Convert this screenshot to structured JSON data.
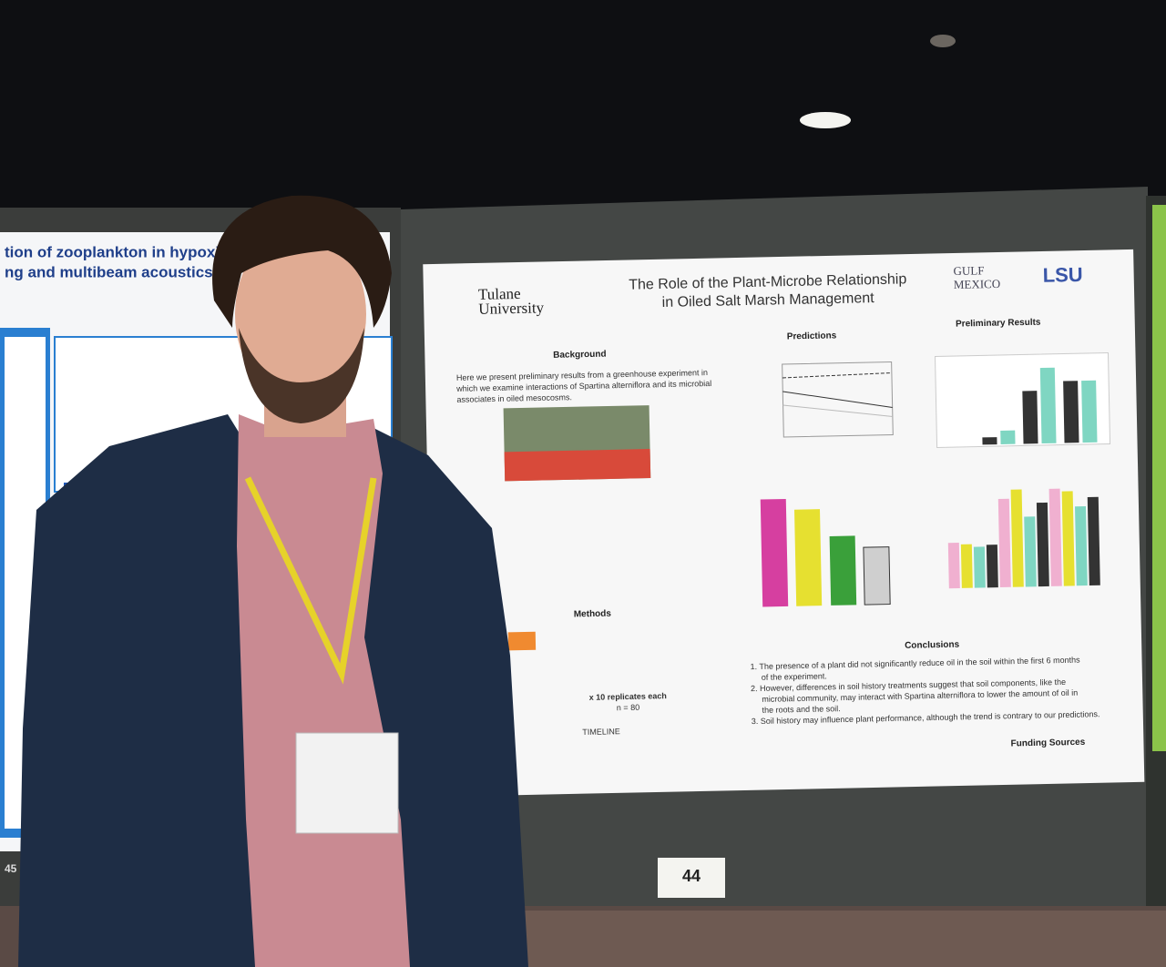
{
  "left_poster": {
    "title_lines": [
      "tion of zooplankton in hypoxic w",
      "ng and multibeam acoustics"
    ],
    "number": "45"
  },
  "poster": {
    "logo_left": [
      "Tulane",
      "University"
    ],
    "logo_gulf": [
      "GULF",
      "MEXICO"
    ],
    "logo_lsu": "LSU",
    "title_lines": [
      "The Role of the Plant-Microbe Relationship",
      "in Oiled Salt Marsh Management"
    ],
    "sections": {
      "background": "Background",
      "predictions": "Predictions",
      "results": "Preliminary Results",
      "methods": "Methods",
      "conclusions": "Conclusions",
      "funding": "Funding Sources"
    },
    "background_text": [
      "Here we present preliminary results from a greenhouse experiment in",
      "which we  examine interactions of Spartina alterniflora and its microbial",
      "associates in oiled mesocosms."
    ],
    "methods_text": [
      "x 10 replicates each",
      "n = 80",
      "TIMELINE"
    ],
    "conclusions": [
      "1. The presence of a plant did not significantly reduce oil in the soil within the first 6 months",
      "of the experiment.",
      "2. However, differences in soil history treatments suggest that soil components, like the",
      "microbial community, may interact with Spartina alterniflora to lower the amount of oil in",
      "the roots and the soil.",
      "3. Soil history may influence plant performance, although the trend is contrary to our predictions."
    ]
  },
  "sign": "44"
}
